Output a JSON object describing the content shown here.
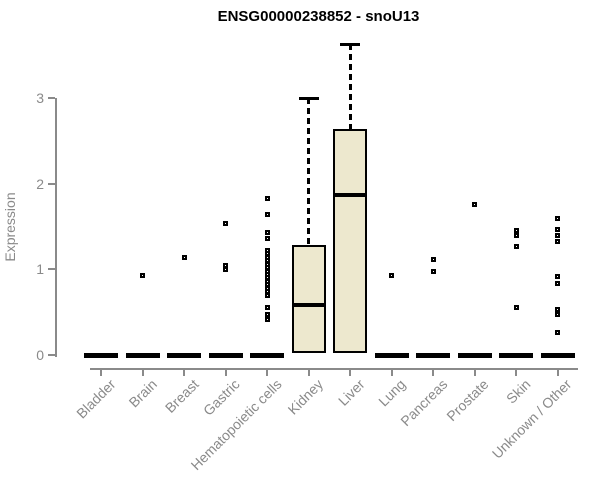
{
  "chart_data": {
    "type": "boxplot",
    "title": "ENSG00000238852 - snoU13",
    "ylabel": "Expression",
    "xlabel": "",
    "ylim": [
      0,
      3.8
    ],
    "y_ticks": [
      0,
      1,
      2,
      3
    ],
    "grid": false,
    "legend": false,
    "x_tick_rotation_deg": 45,
    "categories": [
      "Bladder",
      "Brain",
      "Breast",
      "Gastric",
      "Hematopoietic cells",
      "Kidney",
      "Liver",
      "Lung",
      "Pancreas",
      "Prostate",
      "Skin",
      "Unknown / Other"
    ],
    "boxes": [
      {
        "category": "Bladder",
        "median": 0,
        "q1": 0,
        "q3": 0,
        "whisker_low": 0,
        "whisker_high": 0,
        "outliers": []
      },
      {
        "category": "Brain",
        "median": 0,
        "q1": 0,
        "q3": 0,
        "whisker_low": 0,
        "whisker_high": 0,
        "outliers": [
          0.93
        ]
      },
      {
        "category": "Breast",
        "median": 0,
        "q1": 0,
        "q3": 0,
        "whisker_low": 0,
        "whisker_high": 0,
        "outliers": [
          1.14
        ]
      },
      {
        "category": "Gastric",
        "median": 0,
        "q1": 0,
        "q3": 0,
        "whisker_low": 0,
        "whisker_high": 0,
        "outliers": [
          1.54,
          1.05,
          1.0
        ]
      },
      {
        "category": "Hematopoietic cells",
        "median": 0,
        "q1": 0,
        "q3": 0,
        "whisker_low": 0,
        "whisker_high": 0,
        "outliers": [
          1.83,
          1.64,
          1.43,
          1.36,
          1.22,
          1.18,
          1.14,
          1.1,
          1.06,
          1.02,
          0.98,
          0.94,
          0.9,
          0.86,
          0.82,
          0.78,
          0.74,
          0.7,
          0.55,
          0.47,
          0.41
        ]
      },
      {
        "category": "Kidney",
        "median": 0.58,
        "q1": 0.02,
        "q3": 1.28,
        "whisker_low": 0.02,
        "whisker_high": 3.0,
        "outliers": []
      },
      {
        "category": "Liver",
        "median": 1.87,
        "q1": 0.02,
        "q3": 2.64,
        "whisker_low": 0.02,
        "whisker_high": 3.63,
        "outliers": []
      },
      {
        "category": "Lung",
        "median": 0,
        "q1": 0,
        "q3": 0,
        "whisker_low": 0,
        "whisker_high": 0,
        "outliers": [
          0.93
        ]
      },
      {
        "category": "Pancreas",
        "median": 0,
        "q1": 0,
        "q3": 0,
        "whisker_low": 0,
        "whisker_high": 0,
        "outliers": [
          1.12,
          0.97
        ]
      },
      {
        "category": "Prostate",
        "median": 0,
        "q1": 0,
        "q3": 0,
        "whisker_low": 0,
        "whisker_high": 0,
        "outliers": [
          1.76
        ]
      },
      {
        "category": "Skin",
        "median": 0,
        "q1": 0,
        "q3": 0,
        "whisker_low": 0,
        "whisker_high": 0,
        "outliers": [
          1.45,
          1.4,
          1.27,
          0.56
        ]
      },
      {
        "category": "Unknown / Other",
        "median": 0,
        "q1": 0,
        "q3": 0,
        "whisker_low": 0,
        "whisker_high": 0,
        "outliers": [
          1.59,
          1.47,
          1.4,
          1.33,
          0.92,
          0.84,
          0.53,
          0.47,
          0.26
        ]
      }
    ],
    "colors": {
      "box_fill": "#EDE8CE",
      "box_border": "#000000",
      "marks": "#000000",
      "axis": "#8A8A8A",
      "text": "#8A8A8A",
      "title": "#000000"
    }
  }
}
